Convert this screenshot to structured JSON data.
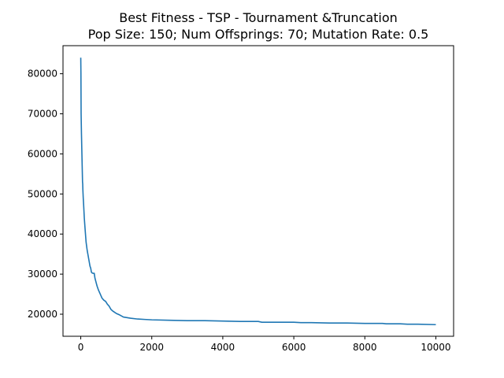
{
  "chart_data": {
    "type": "line",
    "title": "Best Fitness - TSP - Tournament &Truncation",
    "subtitle": "Pop Size: 150; Num Offsprings: 70; Mutation Rate: 0.5",
    "xlabel": "",
    "ylabel": "",
    "xlim": [
      -500,
      10500
    ],
    "ylim": [
      14500,
      87000
    ],
    "x_ticks": [
      0,
      2000,
      4000,
      6000,
      8000,
      10000
    ],
    "y_ticks": [
      20000,
      30000,
      40000,
      50000,
      60000,
      70000,
      80000
    ],
    "grid": false,
    "legend": "none",
    "line_color": "#1f77b4",
    "series": [
      {
        "x": [
          0,
          5,
          10,
          20,
          30,
          40,
          50,
          55,
          60,
          70,
          80,
          100,
          120,
          150,
          180,
          200,
          220,
          240,
          260,
          280,
          300,
          320,
          350,
          380,
          400,
          430,
          460,
          500,
          550,
          600,
          650,
          700,
          750,
          800,
          850,
          900,
          950,
          1000,
          1100,
          1200,
          1400,
          1600,
          1800,
          2000,
          2500,
          3000,
          3500,
          4000,
          4500,
          5000,
          5100,
          5500,
          6000,
          6200,
          6500,
          7000,
          7500,
          8000,
          8500,
          8600,
          9000,
          9200,
          9500,
          10000
        ],
        "y": [
          84000,
          80000,
          70000,
          65000,
          61000,
          57000,
          53000,
          52500,
          51000,
          49000,
          47500,
          44000,
          41500,
          38000,
          36000,
          35000,
          34000,
          33000,
          32000,
          31500,
          30500,
          30300,
          30200,
          30200,
          29000,
          28000,
          27000,
          26000,
          25000,
          24000,
          23500,
          23200,
          22500,
          22000,
          21200,
          20800,
          20500,
          20200,
          19800,
          19300,
          19000,
          18800,
          18700,
          18600,
          18500,
          18400,
          18400,
          18300,
          18200,
          18200,
          18000,
          18000,
          18000,
          17900,
          17900,
          17800,
          17800,
          17700,
          17700,
          17600,
          17600,
          17500,
          17500,
          17400
        ]
      }
    ]
  }
}
